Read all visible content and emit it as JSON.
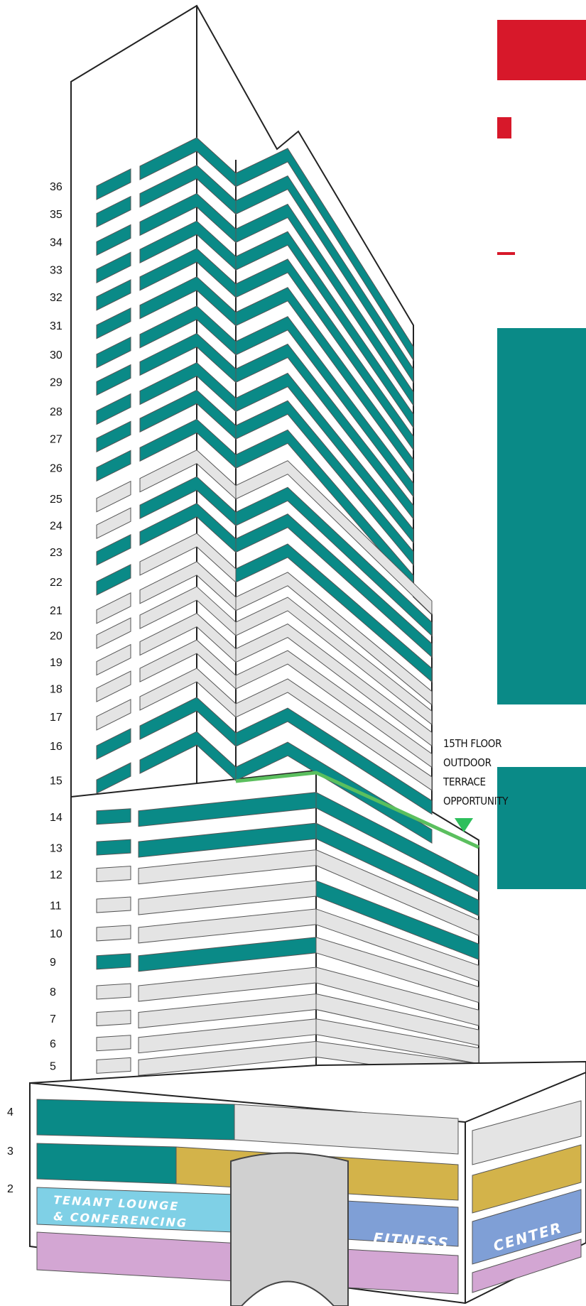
{
  "floors": [
    "36",
    "35",
    "34",
    "33",
    "32",
    "31",
    "30",
    "29",
    "28",
    "27",
    "26",
    "25",
    "24",
    "23",
    "22",
    "21",
    "20",
    "19",
    "18",
    "17",
    "16",
    "15",
    "14",
    "13",
    "12",
    "11",
    "10",
    "9",
    "8",
    "7",
    "6",
    "5",
    "4",
    "3",
    "2"
  ],
  "annotation": [
    "15TH FLOOR",
    "OUTDOOR",
    "TERRACE",
    "OPPORTUNITY"
  ],
  "amenities": {
    "lounge": [
      "TENANT LOUNGE",
      "& CONFERENCING"
    ],
    "fitness": "FITNESS",
    "center": "CENTER"
  }
}
